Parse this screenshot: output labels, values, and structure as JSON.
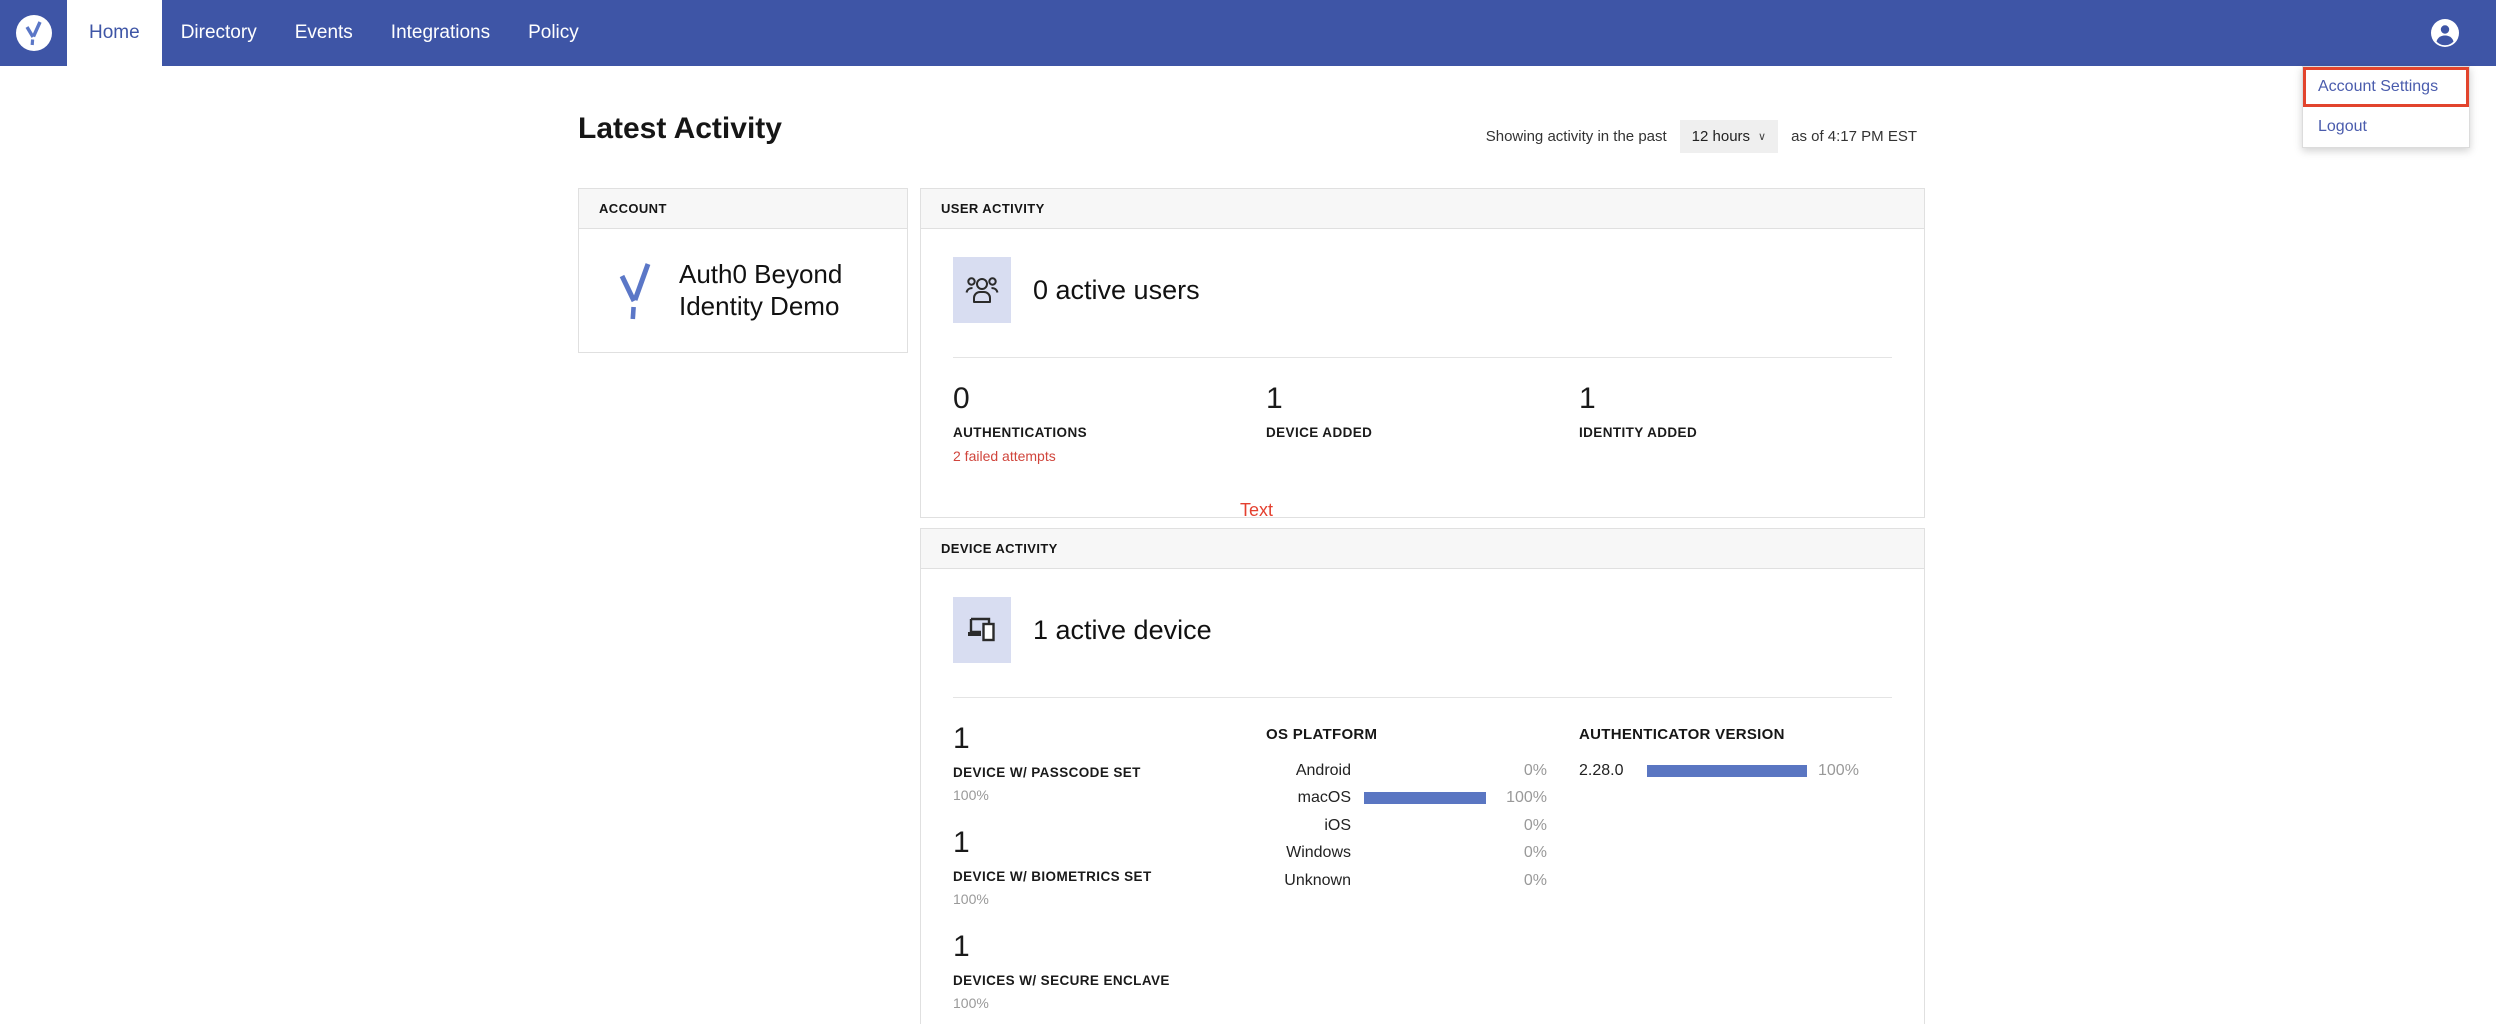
{
  "colors": {
    "nav_blue": "#3E55A6",
    "bar_blue": "#5A76C2",
    "tile_lavender": "#D8DDF1",
    "alert_red": "#D0453C",
    "annotation_red": "#E4402F",
    "highlight_border_red": "#E2442D",
    "link_blue": "#4A5CAD"
  },
  "nav": {
    "items": [
      {
        "label": "Home",
        "active": true
      },
      {
        "label": "Directory",
        "active": false
      },
      {
        "label": "Events",
        "active": false
      },
      {
        "label": "Integrations",
        "active": false
      },
      {
        "label": "Policy",
        "active": false
      }
    ]
  },
  "user_menu": {
    "items": [
      {
        "label": "Account Settings",
        "highlighted": true
      },
      {
        "label": "Logout",
        "highlighted": false
      }
    ]
  },
  "page": {
    "title": "Latest Activity"
  },
  "activity_filter": {
    "prefix": "Showing activity in the past",
    "selected": "12 hours",
    "chevron": "∨",
    "suffix": "as of 4:17 PM EST"
  },
  "account_card": {
    "header": "ACCOUNT",
    "name": "Auth0 Beyond Identity Demo"
  },
  "user_activity": {
    "header": "USER ACTIVITY",
    "summary": "0 active users",
    "stats": [
      {
        "value": "0",
        "label": "AUTHENTICATIONS",
        "sub": "2 failed attempts"
      },
      {
        "value": "1",
        "label": "DEVICE ADDED",
        "sub": ""
      },
      {
        "value": "1",
        "label": "IDENTITY ADDED",
        "sub": ""
      }
    ]
  },
  "annotation": {
    "label": "Text"
  },
  "device_activity": {
    "header": "DEVICE ACTIVITY",
    "summary": "1 active device",
    "stats": [
      {
        "value": "1",
        "label": "DEVICE W/ PASSCODE SET",
        "percent": "100%"
      },
      {
        "value": "1",
        "label": "DEVICE W/ BIOMETRICS SET",
        "percent": "100%"
      },
      {
        "value": "1",
        "label": "DEVICES W/ SECURE ENCLAVE",
        "percent": "100%"
      }
    ],
    "os_platform": {
      "header": "OS PLATFORM",
      "rows": [
        {
          "label": "Android",
          "percent": "0%",
          "value": 0
        },
        {
          "label": "macOS",
          "percent": "100%",
          "value": 100
        },
        {
          "label": "iOS",
          "percent": "0%",
          "value": 0
        },
        {
          "label": "Windows",
          "percent": "0%",
          "value": 0
        },
        {
          "label": "Unknown",
          "percent": "0%",
          "value": 0
        }
      ]
    },
    "authenticator_version": {
      "header": "AUTHENTICATOR VERSION",
      "rows": [
        {
          "label": "2.28.0",
          "percent": "100%",
          "value": 100
        }
      ]
    }
  }
}
